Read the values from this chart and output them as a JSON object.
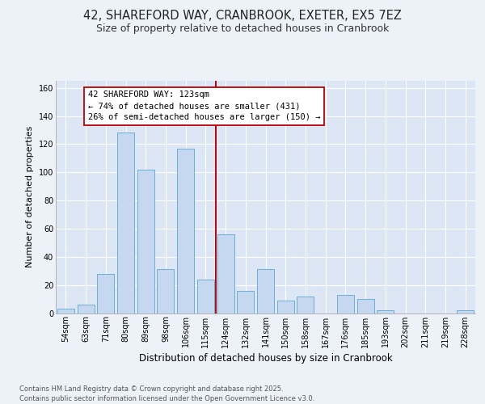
{
  "title": "42, SHAREFORD WAY, CRANBROOK, EXETER, EX5 7EZ",
  "subtitle": "Size of property relative to detached houses in Cranbrook",
  "xlabel": "Distribution of detached houses by size in Cranbrook",
  "ylabel": "Number of detached properties",
  "categories": [
    "54sqm",
    "63sqm",
    "71sqm",
    "80sqm",
    "89sqm",
    "98sqm",
    "106sqm",
    "115sqm",
    "124sqm",
    "132sqm",
    "141sqm",
    "150sqm",
    "158sqm",
    "167sqm",
    "176sqm",
    "185sqm",
    "193sqm",
    "202sqm",
    "211sqm",
    "219sqm",
    "228sqm"
  ],
  "values": [
    3,
    6,
    28,
    128,
    102,
    31,
    117,
    24,
    56,
    16,
    31,
    9,
    12,
    0,
    13,
    10,
    2,
    0,
    0,
    0,
    2
  ],
  "bar_color": "#c5d8f0",
  "bar_edge_color": "#6baed6",
  "vline_index": 7.5,
  "annotation_line1": "42 SHAREFORD WAY: 123sqm",
  "annotation_line2": "← 74% of detached houses are smaller (431)",
  "annotation_line3": "26% of semi-detached houses are larger (150) →",
  "vline_color": "#bb0000",
  "annotation_box_edge": "#bb0000",
  "ylim": [
    0,
    165
  ],
  "yticks": [
    0,
    20,
    40,
    60,
    80,
    100,
    120,
    140,
    160
  ],
  "fig_bg": "#edf2f9",
  "axes_bg": "#dce6f5",
  "grid_color": "#ffffff",
  "footer_line1": "Contains HM Land Registry data © Crown copyright and database right 2025.",
  "footer_line2": "Contains public sector information licensed under the Open Government Licence v3.0.",
  "title_fontsize": 10.5,
  "subtitle_fontsize": 9,
  "xlabel_fontsize": 8.5,
  "ylabel_fontsize": 8,
  "tick_fontsize": 7,
  "annotation_fontsize": 7.5,
  "footer_fontsize": 6
}
